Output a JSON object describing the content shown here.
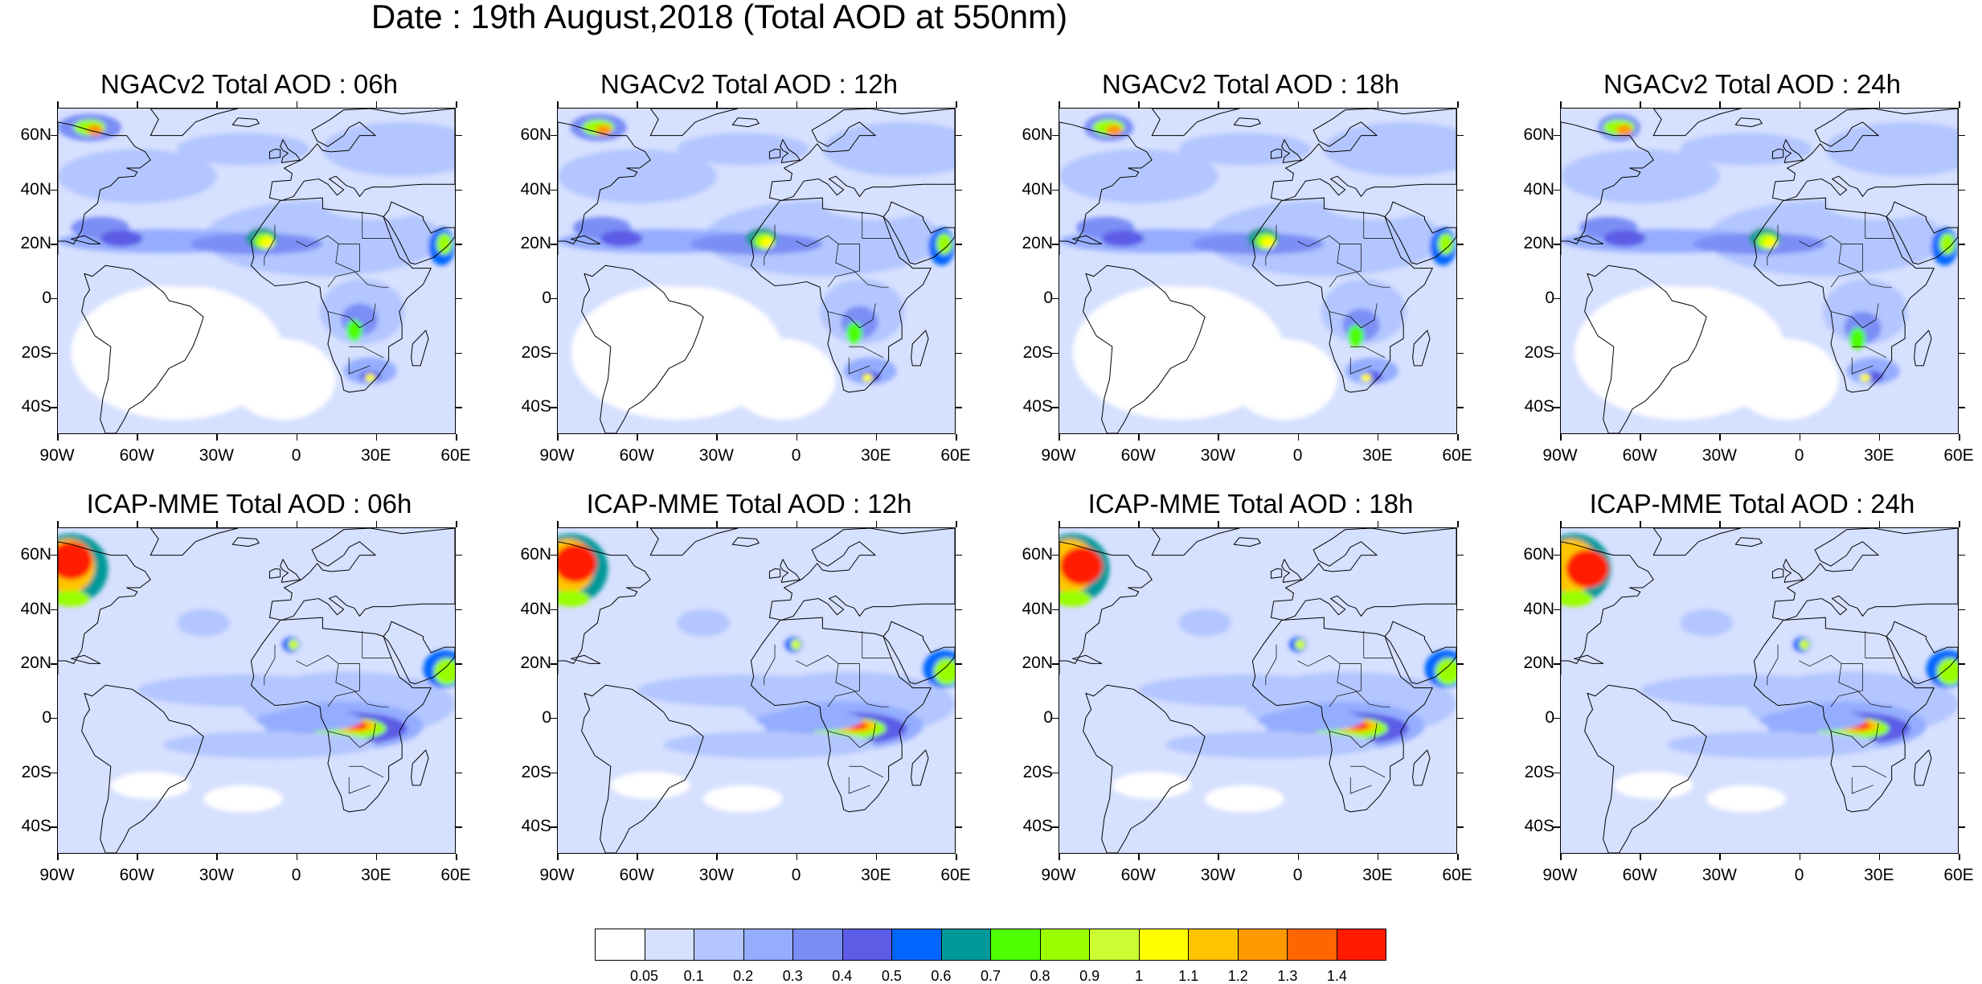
{
  "title": "Date : 19th August,2018 (Total AOD at 550nm)",
  "panels": [
    {
      "title": "NGACv2 Total AOD : 06h",
      "model": "ngac",
      "hour": 6
    },
    {
      "title": "NGACv2 Total AOD : 12h",
      "model": "ngac",
      "hour": 12
    },
    {
      "title": "NGACv2 Total AOD : 18h",
      "model": "ngac",
      "hour": 18
    },
    {
      "title": "NGACv2 Total AOD : 24h",
      "model": "ngac",
      "hour": 24
    },
    {
      "title": "ICAP-MME Total AOD : 06h",
      "model": "icap",
      "hour": 6
    },
    {
      "title": "ICAP-MME Total AOD : 12h",
      "model": "icap",
      "hour": 12
    },
    {
      "title": "ICAP-MME Total AOD : 18h",
      "model": "icap",
      "hour": 18
    },
    {
      "title": "ICAP-MME Total AOD : 24h",
      "model": "icap",
      "hour": 24
    }
  ],
  "axes": {
    "lat_labels": [
      "60N",
      "40N",
      "20N",
      "0",
      "20S",
      "40S"
    ],
    "lat_values": [
      60,
      40,
      20,
      0,
      -20,
      -40
    ],
    "lon_labels": [
      "90W",
      "60W",
      "30W",
      "0",
      "30E",
      "60E"
    ],
    "lon_values": [
      -90,
      -60,
      -30,
      0,
      30,
      60
    ],
    "lat_range": [
      -50,
      70
    ],
    "lon_range": [
      -90,
      60
    ]
  },
  "colorbar": {
    "labels": [
      "0.05",
      "0.1",
      "0.2",
      "0.3",
      "0.4",
      "0.5",
      "0.6",
      "0.7",
      "0.8",
      "0.9",
      "1",
      "1.1",
      "1.2",
      "1.3",
      "1.4"
    ],
    "colors": [
      "#ffffff",
      "#d6e0ff",
      "#b3c6ff",
      "#94adff",
      "#7a8ef5",
      "#5c5ce6",
      "#0066ff",
      "#009999",
      "#4dff00",
      "#99ff00",
      "#ccff33",
      "#ffff00",
      "#ffc400",
      "#ff9900",
      "#ff6600",
      "#ff1a00"
    ]
  }
}
